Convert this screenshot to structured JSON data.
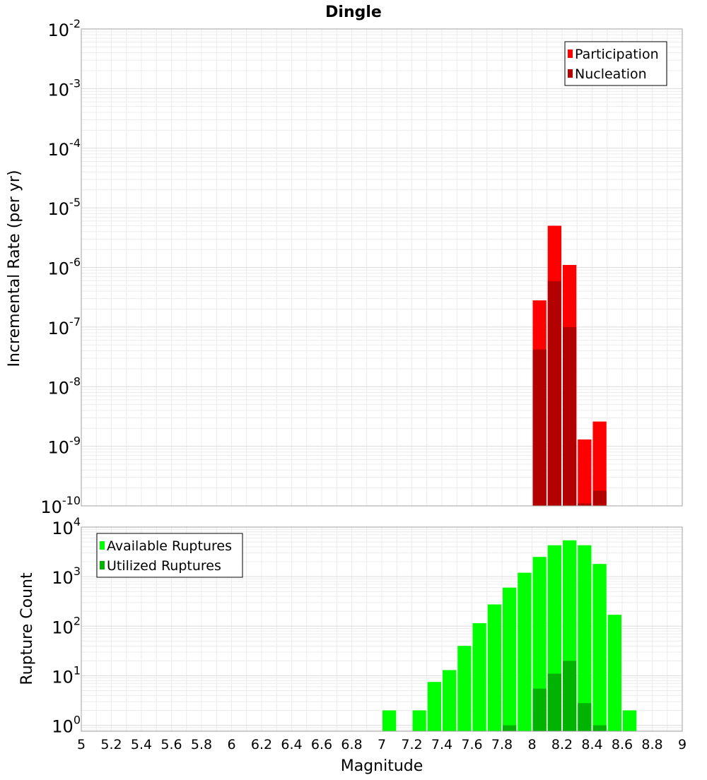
{
  "chart_data": {
    "type": "bar",
    "title": "Dingle",
    "xlabel": "Magnitude",
    "xlim": [
      5,
      9
    ],
    "xticks": [
      "5",
      "5.2",
      "5.4",
      "5.6",
      "5.8",
      "6",
      "6.2",
      "6.4",
      "6.6",
      "6.8",
      "7",
      "7.2",
      "7.4",
      "7.6",
      "7.8",
      "8",
      "8.2",
      "8.4",
      "8.6",
      "8.8",
      "9"
    ],
    "bin_width": 0.1,
    "panels": [
      {
        "id": "rate",
        "ylabel": "Incremental Rate (per yr)",
        "yscale": "log",
        "ylim_exp": [
          -10,
          -2
        ],
        "yticks_exp": [
          "-10",
          "-9",
          "-8",
          "-7",
          "-6",
          "-5",
          "-4",
          "-3",
          "-2"
        ],
        "legend": {
          "position": "top-right"
        },
        "series": [
          {
            "name": "Participation",
            "color": "#ff0000",
            "x": [
              8.05,
              8.15,
              8.25,
              8.35,
              8.45
            ],
            "values": [
              2.8e-07,
              5e-06,
              1.1e-06,
              1.3e-09,
              2.6e-09
            ]
          },
          {
            "name": "Nucleation",
            "color": "#b30000",
            "x": [
              8.05,
              8.15,
              8.25,
              8.35,
              8.45
            ],
            "values": [
              4.2e-08,
              5.9e-07,
              1e-07,
              1.1e-10,
              1.8e-10
            ]
          }
        ]
      },
      {
        "id": "count",
        "ylabel": "Rupture Count",
        "yscale": "log",
        "ylim_exp": [
          -0.12,
          4
        ],
        "yticks_exp": [
          "0",
          "1",
          "2",
          "3",
          "4"
        ],
        "legend": {
          "position": "top-left"
        },
        "series": [
          {
            "name": "Available Ruptures",
            "color": "#00ff00",
            "x": [
              7.05,
              7.25,
              7.35,
              7.45,
              7.55,
              7.65,
              7.75,
              7.85,
              7.95,
              8.05,
              8.15,
              8.25,
              8.35,
              8.45,
              8.55,
              8.65
            ],
            "values": [
              2,
              2,
              7.5,
              13,
              40,
              115,
              275,
              600,
              1200,
              2500,
              4300,
              5400,
              4300,
              1800,
              170,
              2
            ]
          },
          {
            "name": "Utilized Ruptures",
            "color": "#00b300",
            "x": [
              7.85,
              8.05,
              8.15,
              8.25,
              8.35,
              8.45
            ],
            "values": [
              1,
              5.5,
              11,
              20,
              2.8,
              1
            ]
          }
        ]
      }
    ]
  }
}
